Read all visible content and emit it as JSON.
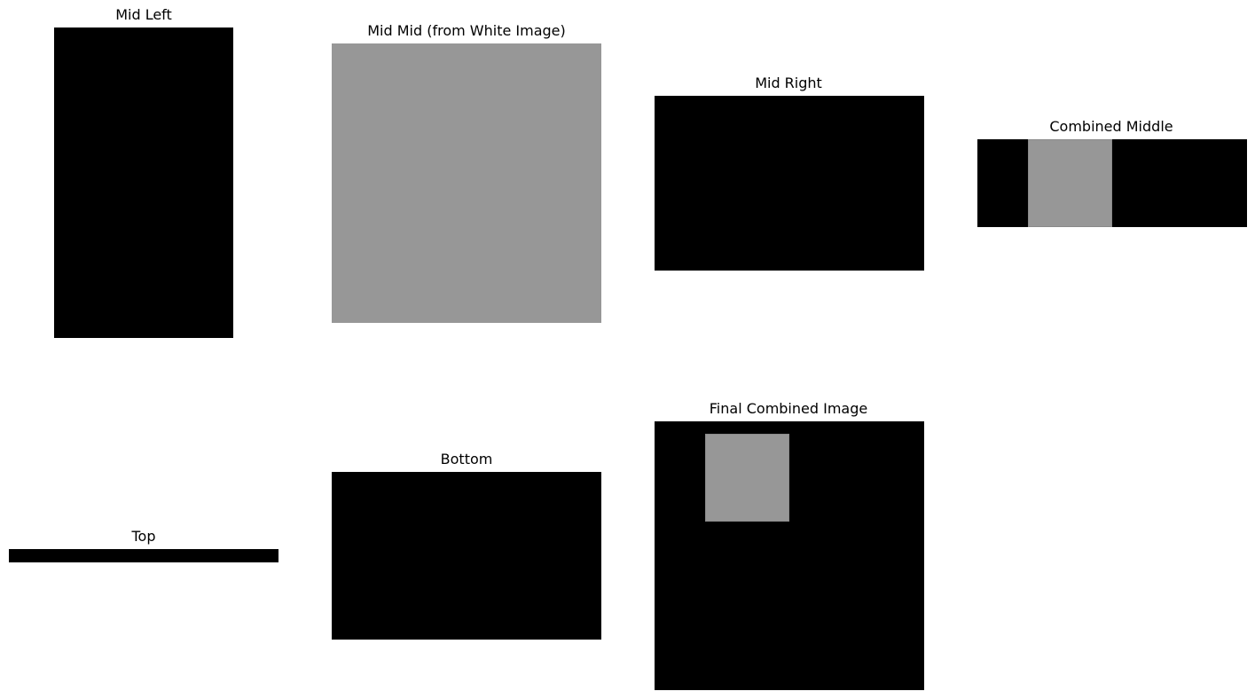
{
  "panels": [
    {
      "title": "Mid Left"
    },
    {
      "title": "Mid Mid (from White Image)"
    },
    {
      "title": "Mid Right"
    },
    {
      "title": "Combined Middle"
    },
    {
      "title": "Top"
    },
    {
      "title": "Bottom"
    },
    {
      "title": "Final Combined Image"
    }
  ],
  "colors": {
    "background": "#ffffff",
    "black_region": "#000000",
    "gray_region": "#979797"
  }
}
